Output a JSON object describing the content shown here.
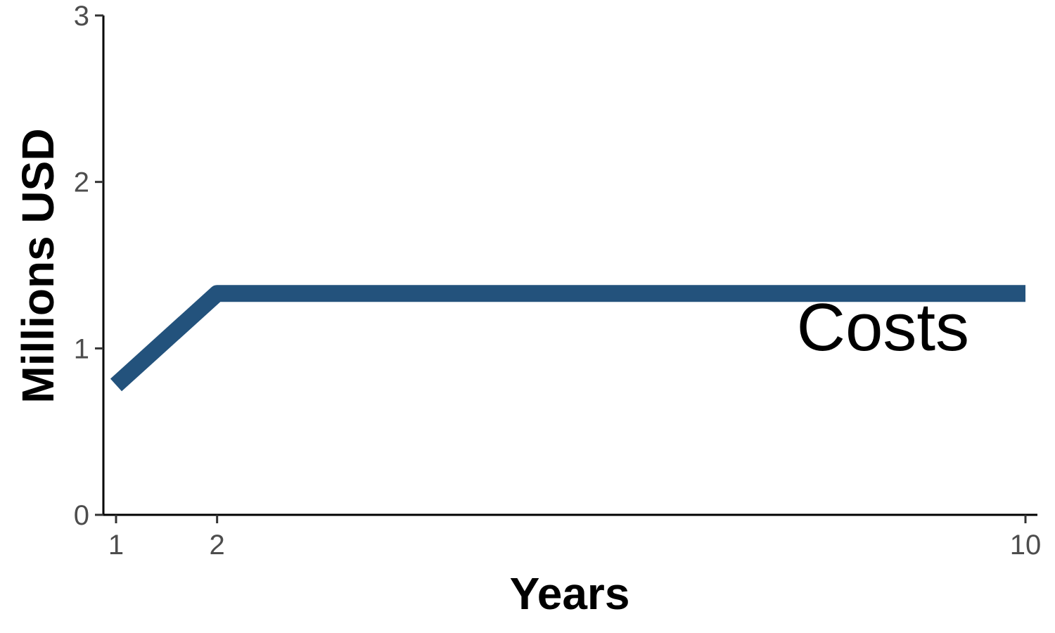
{
  "chart_data": {
    "type": "line",
    "xlabel": "Years",
    "ylabel": "Millions USD",
    "x": [
      1,
      2,
      10
    ],
    "xlim": [
      1,
      10
    ],
    "ylim": [
      0,
      3
    ],
    "xticks": [
      1,
      2,
      10
    ],
    "yticks": [
      0,
      1,
      2,
      3
    ],
    "grid": false,
    "series": [
      {
        "name": "Costs",
        "values": [
          0.78,
          1.33,
          1.33
        ],
        "color": "#23527c"
      }
    ]
  }
}
